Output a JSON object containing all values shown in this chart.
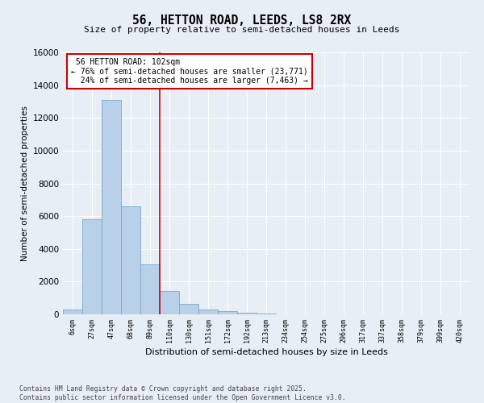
{
  "title": "56, HETTON ROAD, LEEDS, LS8 2RX",
  "subtitle": "Size of property relative to semi-detached houses in Leeds",
  "xlabel": "Distribution of semi-detached houses by size in Leeds",
  "ylabel": "Number of semi-detached properties",
  "bar_color": "#b8d0e8",
  "bar_edge_color": "#7aaac8",
  "background_color": "#e8eef5",
  "grid_color": "#ffffff",
  "categories": [
    "6sqm",
    "27sqm",
    "47sqm",
    "68sqm",
    "89sqm",
    "110sqm",
    "130sqm",
    "151sqm",
    "172sqm",
    "192sqm",
    "213sqm",
    "234sqm",
    "254sqm",
    "275sqm",
    "296sqm",
    "317sqm",
    "337sqm",
    "358sqm",
    "379sqm",
    "399sqm",
    "420sqm"
  ],
  "values": [
    300,
    5800,
    13100,
    6600,
    3050,
    1450,
    650,
    300,
    200,
    100,
    60,
    0,
    0,
    0,
    0,
    0,
    0,
    0,
    0,
    0,
    0
  ],
  "ylim": [
    0,
    16000
  ],
  "yticks": [
    0,
    2000,
    4000,
    6000,
    8000,
    10000,
    12000,
    14000,
    16000
  ],
  "property_label": "56 HETTON ROAD: 102sqm",
  "pct_smaller": 76,
  "pct_larger": 24,
  "n_smaller": 23771,
  "n_larger": 7463,
  "vline_bin": 4.5,
  "annotation_box_color": "#ffffff",
  "annotation_box_edge": "#cc0000",
  "vline_color": "#cc0000",
  "footer_line1": "Contains HM Land Registry data © Crown copyright and database right 2025.",
  "footer_line2": "Contains public sector information licensed under the Open Government Licence v3.0."
}
